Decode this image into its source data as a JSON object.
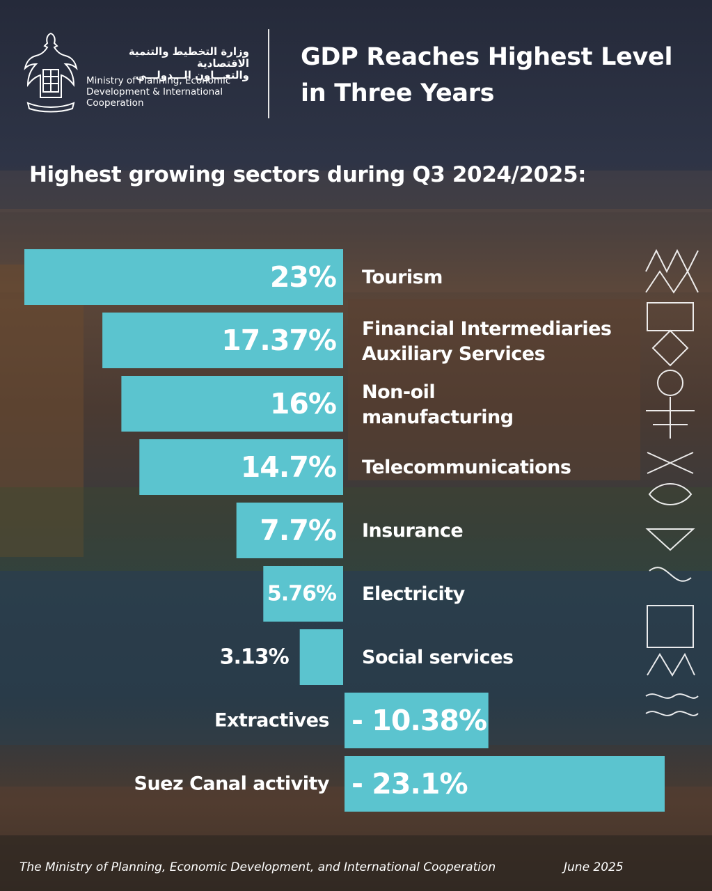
{
  "header": {
    "ministry_ar": "وزارة التخطيط والتنمية الاقتصادية\nوالتعـــاون الـــدولـــي",
    "ministry_en": "Ministry of Planning, Economic\nDevelopment & International\nCooperation",
    "title": "GDP Reaches Highest Level\nin Three Years"
  },
  "chart_data": {
    "type": "bar",
    "orientation": "horizontal",
    "title": "Highest growing sectors during Q3 2024/2025:",
    "categories": [
      "Tourism",
      "Financial Intermediaries Auxiliary Services",
      "Non-oil manufacturing",
      "Telecommunications",
      "Insurance",
      "Electricity",
      "Social services",
      "Extractives",
      "Suez Canal activity"
    ],
    "category_labels": [
      "Tourism",
      "Financial Intermediaries\nAuxiliary Services",
      "Non-oil\nmanufacturing",
      "Telecommunications",
      "Insurance",
      "Electricity",
      "Social services",
      "Extractives",
      "Suez Canal activity"
    ],
    "values": [
      23,
      17.37,
      16,
      14.7,
      7.7,
      5.76,
      3.13,
      -10.38,
      -23.1
    ],
    "value_labels": [
      "23%",
      "17.37%",
      "16%",
      "14.7%",
      "7.7%",
      "5.76%",
      "3.13%",
      "- 10.38%",
      "- 23.1%"
    ],
    "bar_color": "#5bc4cf",
    "grid": false,
    "legend": "none"
  },
  "footer": {
    "source": "The Ministry of Planning, Economic Development, and International Cooperation",
    "date": "June 2025"
  }
}
